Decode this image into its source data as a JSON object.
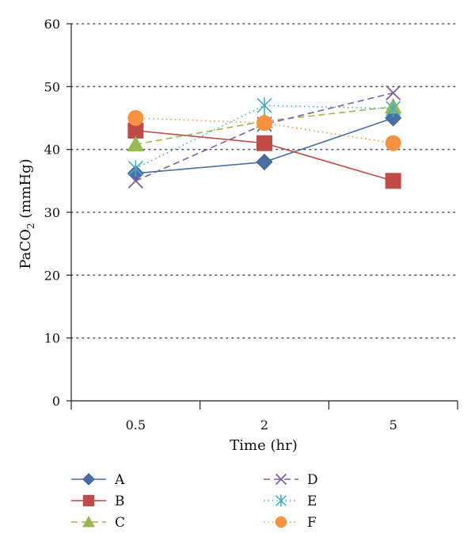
{
  "chart_data": {
    "type": "line",
    "title": "",
    "xlabel": "Time (hr)",
    "ylabel_main": "PaCO",
    "ylabel_sub": "2",
    "ylabel_unit": " (mmHg)",
    "categories": [
      "0.5",
      "2",
      "5"
    ],
    "ylim": [
      0,
      60
    ],
    "yticks": [
      0,
      10,
      20,
      30,
      40,
      50,
      60
    ],
    "grid": true,
    "legend_position": "bottom",
    "series": [
      {
        "name": "A",
        "values": [
          36.2,
          38,
          45
        ],
        "color": "#4a6fa5",
        "marker": "diamond",
        "dash": "solid"
      },
      {
        "name": "B",
        "values": [
          43,
          41,
          35
        ],
        "color": "#be4b48",
        "marker": "square",
        "dash": "solid"
      },
      {
        "name": "C",
        "values": [
          40.8,
          44.5,
          46.8
        ],
        "color": "#98b954",
        "marker": "triangle",
        "dash": "dash"
      },
      {
        "name": "D",
        "values": [
          35,
          44,
          49
        ],
        "color": "#7d60a0",
        "marker": "x",
        "dash": "dash"
      },
      {
        "name": "E",
        "values": [
          37,
          47,
          46.5
        ],
        "color": "#46aac5",
        "marker": "asterisk",
        "dash": "dot"
      },
      {
        "name": "F",
        "values": [
          45,
          44.2,
          41
        ],
        "color": "#f69240",
        "marker": "circle",
        "dash": "dot"
      }
    ]
  }
}
